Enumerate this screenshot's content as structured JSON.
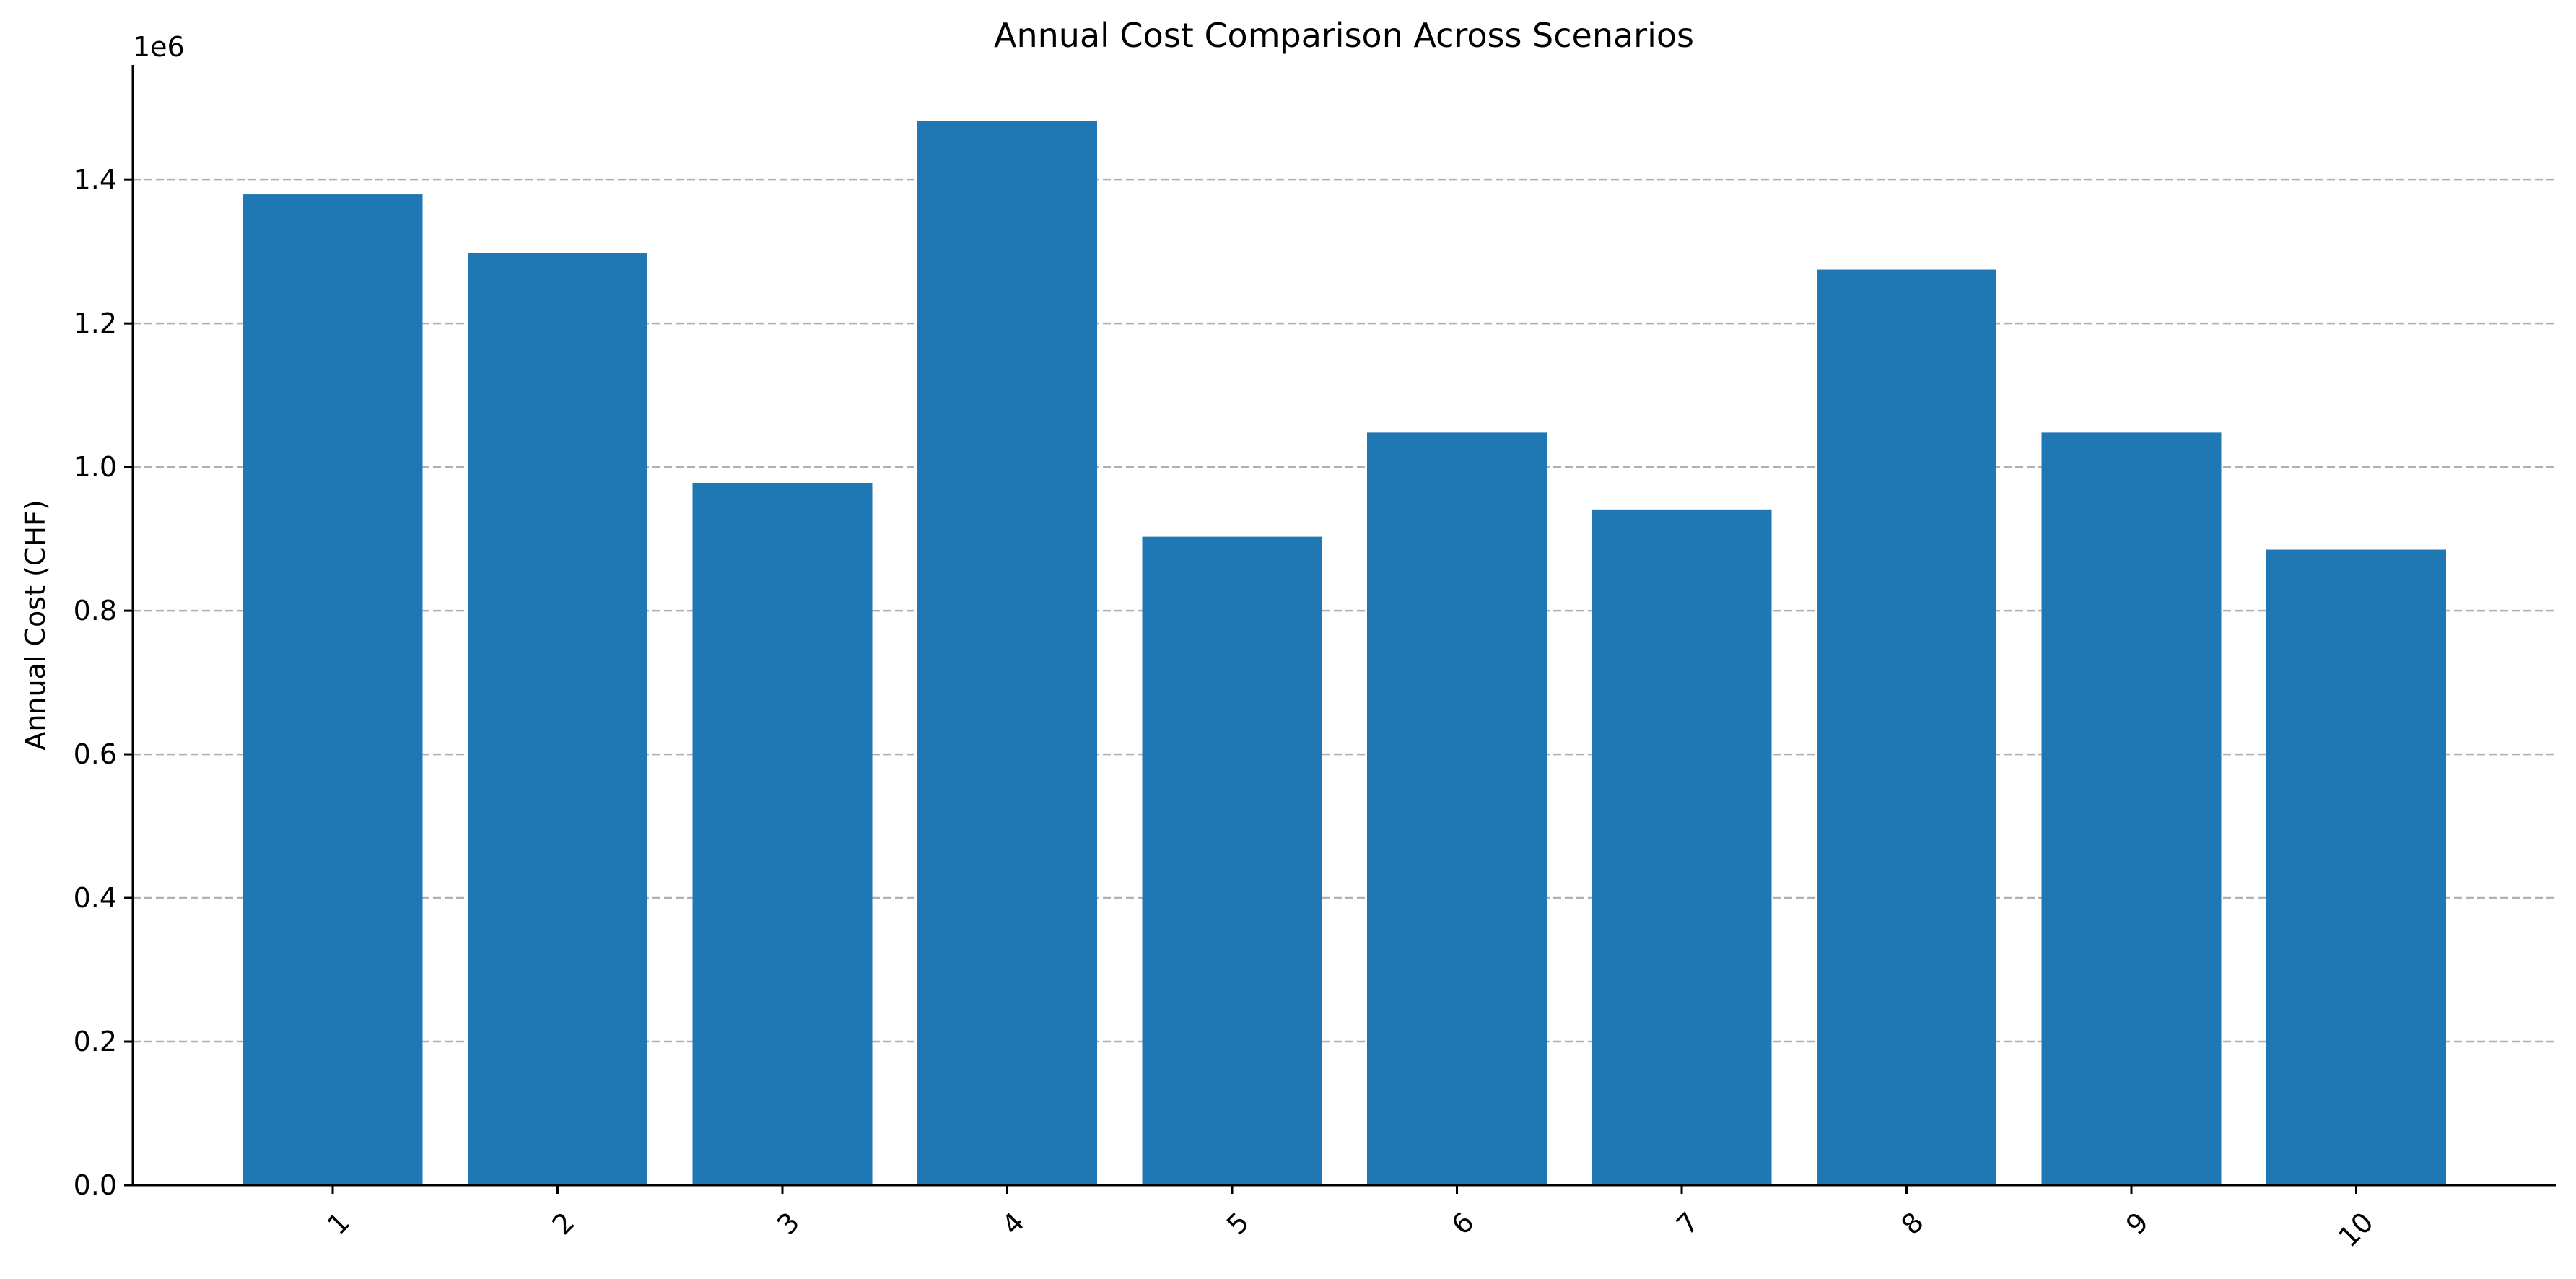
{
  "chart_data": {
    "type": "bar",
    "title": "Annual Cost Comparison Across Scenarios",
    "xlabel": "",
    "ylabel": "Annual Cost (CHF)",
    "y_offset_label": "1e6",
    "categories": [
      "1",
      "2",
      "3",
      "4",
      "5",
      "6",
      "7",
      "8",
      "9",
      "10"
    ],
    "values": [
      1380000,
      1298000,
      978000,
      1482000,
      903000,
      1048000,
      941000,
      1275000,
      1048000,
      885000
    ],
    "ylim": [
      0,
      1560000
    ],
    "yticks": [
      0,
      200000,
      400000,
      600000,
      800000,
      1000000,
      1200000,
      1400000
    ],
    "ytick_labels": [
      "0.0",
      "0.2",
      "0.4",
      "0.6",
      "0.8",
      "1.0",
      "1.2",
      "1.4"
    ],
    "grid": "y-dashed",
    "bar_color": "#1f77b4",
    "grid_color": "#b0b0b0"
  }
}
